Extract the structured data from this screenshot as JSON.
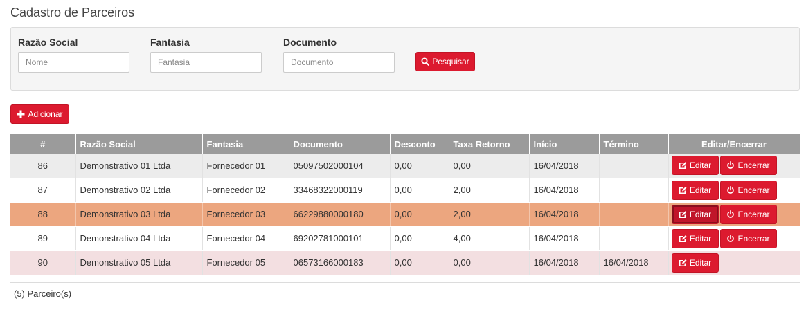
{
  "page": {
    "title": "Cadastro de Parceiros"
  },
  "filters": {
    "razao_social": {
      "label": "Razão Social",
      "placeholder": "Nome",
      "value": ""
    },
    "fantasia": {
      "label": "Fantasia",
      "placeholder": "Fantasia",
      "value": ""
    },
    "documento": {
      "label": "Documento",
      "placeholder": "Documento",
      "value": ""
    },
    "search_label": "Pesquisar"
  },
  "toolbar": {
    "add_label": "Adicionar"
  },
  "table": {
    "headers": [
      "#",
      "Razão Social",
      "Fantasia",
      "Documento",
      "Desconto",
      "Taxa Retorno",
      "Início",
      "Término",
      "Editar/Encerrar"
    ],
    "edit_label": "Editar",
    "end_label": "Encerrar",
    "rows": [
      {
        "id": "86",
        "razao": "Demonstrativo 01 Ltda",
        "fantasia": "Fornecedor 01",
        "documento": "05097502000104",
        "desconto": "0,00",
        "taxa": "0,00",
        "inicio": "16/04/2018",
        "termino": ""
      },
      {
        "id": "87",
        "razao": "Demonstrativo 02 Ltda",
        "fantasia": "Fornecedor 02",
        "documento": "33468322000119",
        "desconto": "0,00",
        "taxa": "2,00",
        "inicio": "16/04/2018",
        "termino": ""
      },
      {
        "id": "88",
        "razao": "Demonstrativo 03 Ltda",
        "fantasia": "Fornecedor 03",
        "documento": "66229880000180",
        "desconto": "0,00",
        "taxa": "2,00",
        "inicio": "16/04/2018",
        "termino": ""
      },
      {
        "id": "89",
        "razao": "Demonstrativo 04 Ltda",
        "fantasia": "Fornecedor 04",
        "documento": "69202781000101",
        "desconto": "0,00",
        "taxa": "4,00",
        "inicio": "16/04/2018",
        "termino": ""
      },
      {
        "id": "90",
        "razao": "Demonstrativo 05 Ltda",
        "fantasia": "Fornecedor 05",
        "documento": "06573166000183",
        "desconto": "0,00",
        "taxa": "0,00",
        "inicio": "16/04/2018",
        "termino": "16/04/2018"
      }
    ]
  },
  "footer": {
    "count": "(5) Parceiro(s)"
  },
  "colors": {
    "accent": "#dc1a2f",
    "header_bg": "#9b9b9b",
    "selected_row": "#eca67f",
    "closed_row": "#f3dfe1"
  },
  "icons": {
    "search": "search-icon",
    "add": "plus-icon",
    "edit": "edit-icon",
    "end": "power-icon"
  }
}
